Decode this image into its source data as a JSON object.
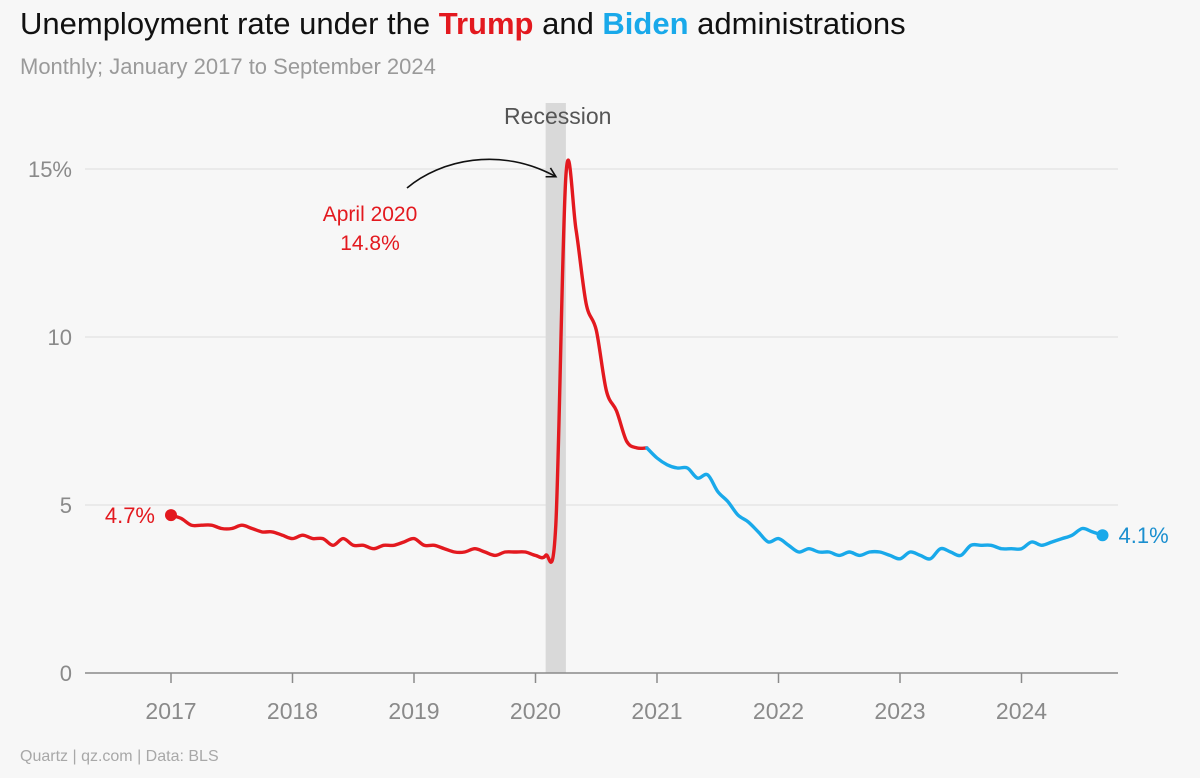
{
  "header": {
    "title_part1": "Unemployment rate under the ",
    "title_trump": "Trump",
    "title_part2": " and ",
    "title_biden": "Biden",
    "title_part3": " administrations",
    "subtitle": "Monthly; January 2017 to September 2024"
  },
  "footer": {
    "source": "Quartz | qz.com | Data: BLS"
  },
  "colors": {
    "trump": "#e3191f",
    "biden": "#19a9ea",
    "recession": "#d9d9d9",
    "grid": "#e2e2e2"
  },
  "chart_data": {
    "type": "line",
    "x_start": "2017-01",
    "ylim": [
      0,
      15.5
    ],
    "yticks": [
      {
        "value": 0,
        "label": "0"
      },
      {
        "value": 5,
        "label": "5"
      },
      {
        "value": 10,
        "label": "10"
      },
      {
        "value": 15,
        "label": "15%"
      }
    ],
    "xticks": [
      "2017",
      "2018",
      "2019",
      "2020",
      "2021",
      "2022",
      "2023",
      "2024"
    ],
    "grid": "horizontal",
    "recession": {
      "label": "Recession",
      "start": "2020-02",
      "end": "2020-04"
    },
    "series": [
      {
        "name": "Trump",
        "start": "2017-01",
        "values": [
          4.7,
          4.6,
          4.4,
          4.4,
          4.4,
          4.3,
          4.3,
          4.4,
          4.3,
          4.2,
          4.2,
          4.1,
          4.0,
          4.1,
          4.0,
          4.0,
          3.8,
          4.0,
          3.8,
          3.8,
          3.7,
          3.8,
          3.8,
          3.9,
          4.0,
          3.8,
          3.8,
          3.7,
          3.6,
          3.6,
          3.7,
          3.6,
          3.5,
          3.6,
          3.6,
          3.6,
          3.5,
          3.5,
          4.4,
          14.8,
          13.2,
          11.0,
          10.2,
          8.4,
          7.8,
          6.9,
          6.7,
          6.7
        ],
        "end_label": "4.7%"
      },
      {
        "name": "Biden",
        "start": "2020-12",
        "values": [
          6.7,
          6.4,
          6.2,
          6.1,
          6.1,
          5.8,
          5.9,
          5.4,
          5.1,
          4.7,
          4.5,
          4.2,
          3.9,
          4.0,
          3.8,
          3.6,
          3.7,
          3.6,
          3.6,
          3.5,
          3.6,
          3.5,
          3.6,
          3.6,
          3.5,
          3.4,
          3.6,
          3.5,
          3.4,
          3.7,
          3.6,
          3.5,
          3.8,
          3.8,
          3.8,
          3.7,
          3.7,
          3.7,
          3.9,
          3.8,
          3.9,
          4.0,
          4.1,
          4.3,
          4.2,
          4.1
        ],
        "end_label": "4.1%"
      }
    ],
    "annotation": {
      "line1": "April 2020",
      "line2": "14.8%",
      "target": "2020-04"
    }
  }
}
